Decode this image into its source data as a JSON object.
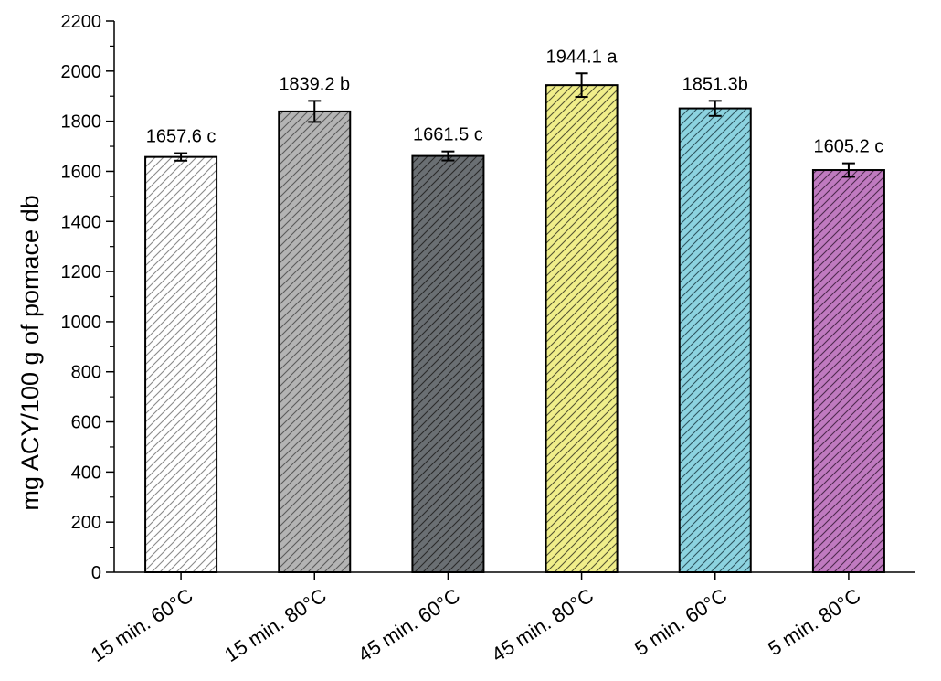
{
  "chart_data": {
    "type": "bar",
    "title": "",
    "xlabel": "",
    "ylabel": "mg ACY/100 g of pomace db",
    "ylim": [
      0,
      2200
    ],
    "yticks": [
      0,
      200,
      400,
      600,
      800,
      1000,
      1200,
      1400,
      1600,
      1800,
      2000,
      2200
    ],
    "categories": [
      "15 min. 60°C",
      "15 min. 80°C",
      "45 min. 60°C",
      "45 min. 80°C",
      "5 min. 60°C",
      "5 min. 80°C"
    ],
    "values": [
      1657.6,
      1839.2,
      1661.5,
      1944.1,
      1851.3,
      1605.2
    ],
    "errors": [
      15,
      42,
      18,
      47,
      30,
      27
    ],
    "data_labels": [
      "1657.6 c",
      "1839.2 b",
      "1661.5 c",
      "1944.1 a",
      "1851.3b",
      "1605.2 c"
    ],
    "bar_colors": [
      "#ffffff",
      "#b4b4b4",
      "#6a6f73",
      "#f0ee8a",
      "#8cd3e0",
      "#c07ac0"
    ],
    "hatch_colors": [
      "#8a8a8a",
      "#5a5a5a",
      "#2a2a2a",
      "#555533",
      "#2f5660",
      "#4e2a4e"
    ],
    "hatch": "diagonal",
    "grid": false,
    "legend": "none"
  }
}
